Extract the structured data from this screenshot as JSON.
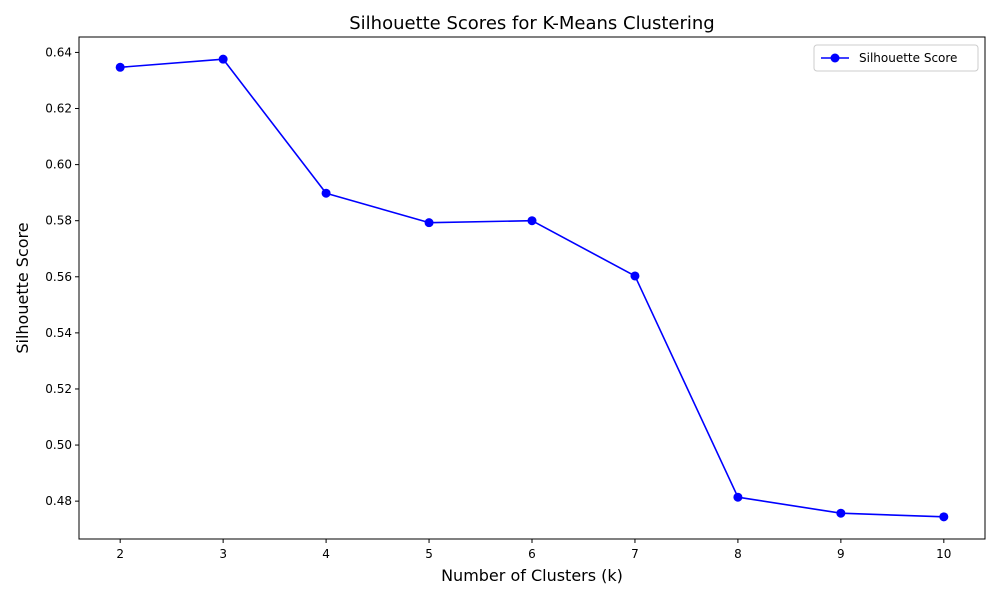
{
  "chart_data": {
    "type": "line",
    "title": "Silhouette Scores for K-Means Clustering",
    "xlabel": "Number of Clusters (k)",
    "ylabel": "Silhouette Score",
    "x": [
      2,
      3,
      4,
      5,
      6,
      7,
      8,
      9,
      10
    ],
    "xlim": [
      1.6,
      10.4
    ],
    "ylim": [
      0.4665,
      0.6455
    ],
    "x_ticks": [
      "2",
      "3",
      "4",
      "5",
      "6",
      "7",
      "8",
      "9",
      "10"
    ],
    "y_ticks": [
      "0.48",
      "0.50",
      "0.52",
      "0.54",
      "0.56",
      "0.58",
      "0.60",
      "0.62",
      "0.64"
    ],
    "grid": false,
    "legend_position": "top-right",
    "series": [
      {
        "name": "Silhouette Score",
        "color": "#0000ff",
        "marker": "circle",
        "values": [
          0.6347,
          0.6376,
          0.5898,
          0.5793,
          0.58,
          0.5603,
          0.4814,
          0.4757,
          0.4744
        ]
      }
    ]
  }
}
